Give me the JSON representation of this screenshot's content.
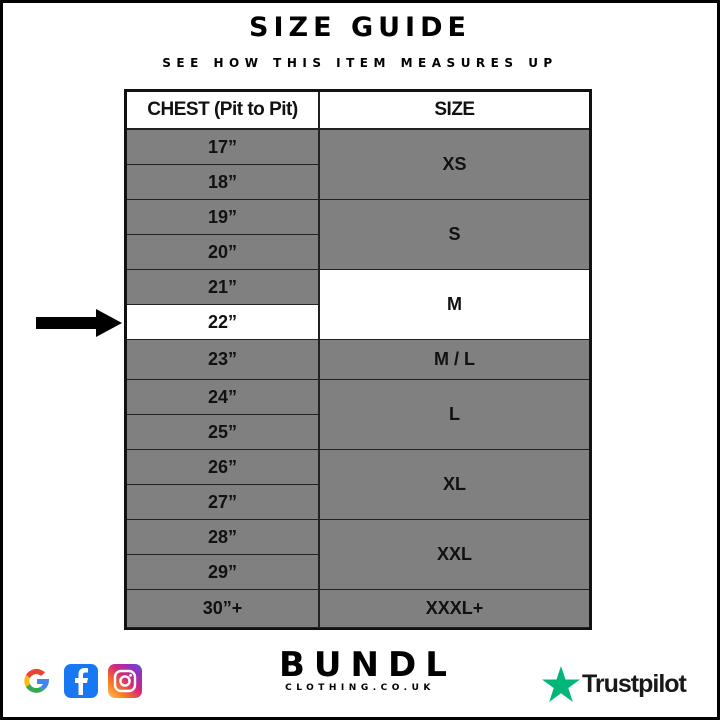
{
  "title": "SIZE GUIDE",
  "subtitle": "SEE HOW THIS ITEM MEASURES UP",
  "table": {
    "headers": [
      "CHEST (Pit to Pit)",
      "SIZE"
    ],
    "chest": [
      "17”",
      "18”",
      "19”",
      "20”",
      "21”",
      "22”",
      "23”",
      "24”",
      "25”",
      "26”",
      "27”",
      "28”",
      "29”",
      "30”+"
    ],
    "sizes": [
      {
        "label": "XS",
        "rows": [
          "17”",
          "18”"
        ]
      },
      {
        "label": "S",
        "rows": [
          "19”",
          "20”"
        ]
      },
      {
        "label": "M",
        "rows": [
          "21”",
          "22”"
        ],
        "highlighted": true
      },
      {
        "label": "M / L",
        "rows": [
          "23”"
        ]
      },
      {
        "label": "L",
        "rows": [
          "24”",
          "25”"
        ]
      },
      {
        "label": "XL",
        "rows": [
          "26”",
          "27”"
        ]
      },
      {
        "label": "XXL",
        "rows": [
          "28”",
          "29”"
        ]
      },
      {
        "label": "XXXL+",
        "rows": [
          "30”+"
        ]
      }
    ],
    "indicated_chest": "22”",
    "colors": {
      "cell": "#808080",
      "highlight": "#ffffff"
    }
  },
  "footer": {
    "social_icons": [
      "google-icon",
      "facebook-icon",
      "instagram-icon"
    ],
    "brand": "BUNDL",
    "brand_sub": "CLOTHING.CO.UK",
    "trustpilot": "Trustpilot",
    "trustpilot_color": "#00b67a"
  }
}
